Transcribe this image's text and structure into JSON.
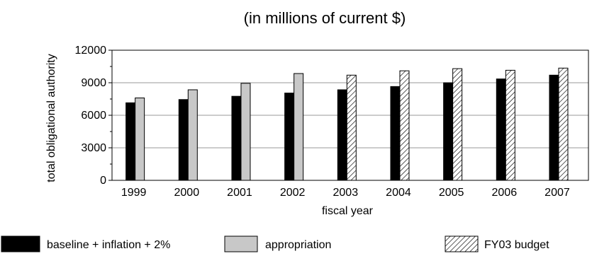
{
  "chart_data": {
    "type": "bar",
    "title": "(in millions of current $)",
    "xlabel": "fiscal year",
    "ylabel": "total obligational authority",
    "ylim": [
      0,
      12000
    ],
    "yticks": [
      0,
      3000,
      6000,
      9000,
      12000
    ],
    "grid": true,
    "legend_position": "bottom",
    "categories": [
      "1999",
      "2000",
      "2001",
      "2002",
      "2003",
      "2004",
      "2005",
      "2006",
      "2007"
    ],
    "series": [
      {
        "name": "baseline + inflation + 2%",
        "style": "solid",
        "color": "#000000",
        "values": [
          7150,
          7450,
          7750,
          8050,
          8350,
          8650,
          9000,
          9350,
          9700
        ]
      },
      {
        "name": "appropriation",
        "style": "solid",
        "color": "#c8c8c8",
        "values": [
          7600,
          8350,
          8950,
          9850,
          null,
          null,
          null,
          null,
          null
        ]
      },
      {
        "name": "FY03 budget",
        "style": "hatched",
        "color": "#000000",
        "values": [
          null,
          null,
          null,
          null,
          9700,
          10100,
          10300,
          10150,
          10350
        ]
      }
    ]
  }
}
